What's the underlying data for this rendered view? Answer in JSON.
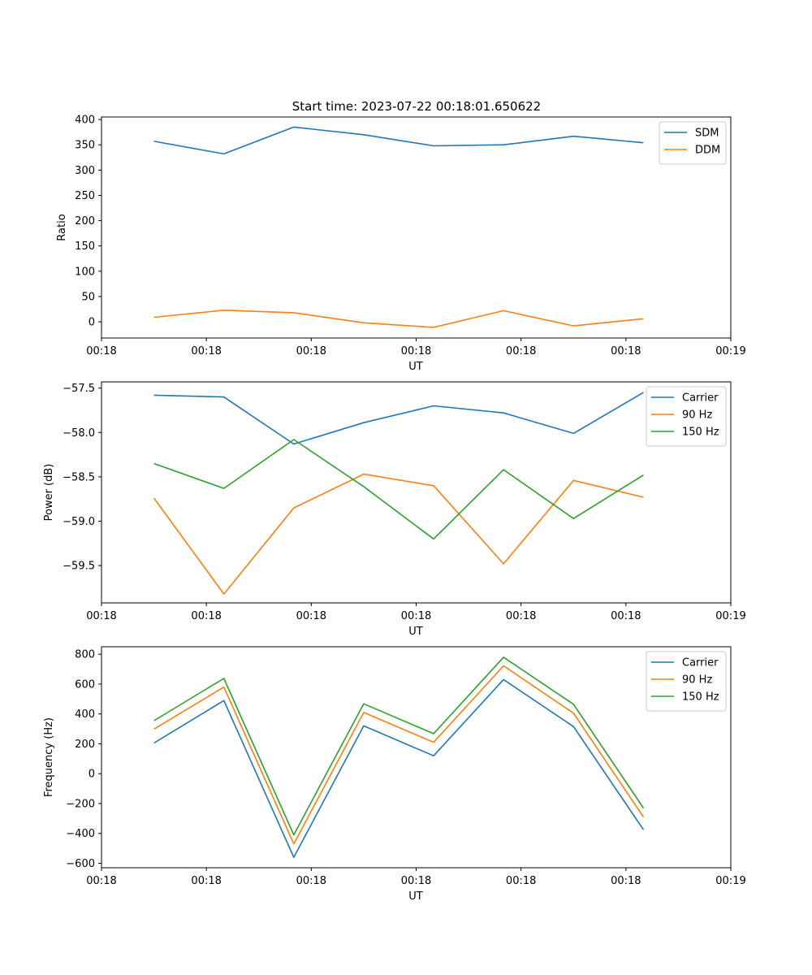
{
  "figure": {
    "title": "Start time: 2023-07-22 00:18:01.650622"
  },
  "chart_data": [
    {
      "type": "line",
      "title": "Start time: 2023-07-22 00:18:01.650622",
      "xlabel": "UT",
      "ylabel": "Ratio",
      "x": [
        1,
        2,
        3,
        4,
        5,
        6,
        7,
        8
      ],
      "xlim": [
        0.25,
        9.25
      ],
      "x_ticks": [
        0.25,
        1.75,
        3.25,
        4.75,
        6.25,
        7.75,
        9.25
      ],
      "x_tick_labels": [
        "00:18",
        "00:18",
        "00:18",
        "00:18",
        "00:18",
        "00:18",
        "00:19"
      ],
      "ylim": [
        -32,
        405
      ],
      "y_ticks": [
        0,
        50,
        100,
        150,
        200,
        250,
        300,
        350,
        400
      ],
      "y_tick_labels": [
        "0",
        "50",
        "100",
        "150",
        "200",
        "250",
        "300",
        "350",
        "400"
      ],
      "legend": "top-right",
      "series": [
        {
          "name": "SDM",
          "color": "#1f77b4",
          "values": [
            357,
            332,
            385,
            370,
            348,
            350,
            367,
            354
          ]
        },
        {
          "name": "DDM",
          "color": "#ff7f0e",
          "values": [
            9,
            23,
            18,
            -2,
            -11,
            22,
            -8,
            6
          ]
        }
      ]
    },
    {
      "type": "line",
      "title": "",
      "xlabel": "UT",
      "ylabel": "Power (dB)",
      "x": [
        1,
        2,
        3,
        4,
        5,
        6,
        7,
        8
      ],
      "xlim": [
        0.25,
        9.25
      ],
      "x_ticks": [
        0.25,
        1.75,
        3.25,
        4.75,
        6.25,
        7.75,
        9.25
      ],
      "x_tick_labels": [
        "00:18",
        "00:18",
        "00:18",
        "00:18",
        "00:18",
        "00:18",
        "00:19"
      ],
      "ylim": [
        -59.92,
        -57.43
      ],
      "y_ticks": [
        -57.5,
        -58.0,
        -58.5,
        -59.0,
        -59.5
      ],
      "y_tick_labels": [
        "−57.5",
        "−58.0",
        "−58.5",
        "−59.0",
        "−59.5"
      ],
      "legend": "top-right",
      "series": [
        {
          "name": "Carrier",
          "color": "#1f77b4",
          "values": [
            -57.58,
            -57.6,
            -58.13,
            -57.89,
            -57.7,
            -57.78,
            -58.01,
            -57.55
          ]
        },
        {
          "name": "90 Hz",
          "color": "#ff7f0e",
          "values": [
            -58.74,
            -59.82,
            -58.85,
            -58.47,
            -58.6,
            -59.48,
            -58.54,
            -58.73
          ]
        },
        {
          "name": "150 Hz",
          "color": "#2ca02c",
          "values": [
            -58.35,
            -58.63,
            -58.08,
            -58.61,
            -59.2,
            -58.42,
            -58.97,
            -58.48
          ]
        }
      ]
    },
    {
      "type": "line",
      "title": "",
      "xlabel": "UT",
      "ylabel": "Frequency (Hz)",
      "x": [
        1,
        2,
        3,
        4,
        5,
        6,
        7,
        8
      ],
      "xlim": [
        0.25,
        9.25
      ],
      "x_ticks": [
        0.25,
        1.75,
        3.25,
        4.75,
        6.25,
        7.75,
        9.25
      ],
      "x_tick_labels": [
        "00:18",
        "00:18",
        "00:18",
        "00:18",
        "00:18",
        "00:18",
        "00:19"
      ],
      "ylim": [
        -630,
        850
      ],
      "y_ticks": [
        800,
        600,
        400,
        200,
        0,
        -200,
        -400,
        -600
      ],
      "y_tick_labels": [
        "800",
        "600",
        "400",
        "200",
        "0",
        "−200",
        "−400",
        "−600"
      ],
      "legend": "top-right",
      "series": [
        {
          "name": "Carrier",
          "color": "#1f77b4",
          "values": [
            205,
            490,
            -560,
            320,
            120,
            630,
            315,
            -375
          ]
        },
        {
          "name": "90 Hz",
          "color": "#ff7f0e",
          "values": [
            298,
            580,
            -470,
            410,
            210,
            722,
            405,
            -290
          ]
        },
        {
          "name": "150 Hz",
          "color": "#2ca02c",
          "values": [
            355,
            638,
            -410,
            468,
            268,
            780,
            465,
            -230
          ]
        }
      ]
    }
  ]
}
